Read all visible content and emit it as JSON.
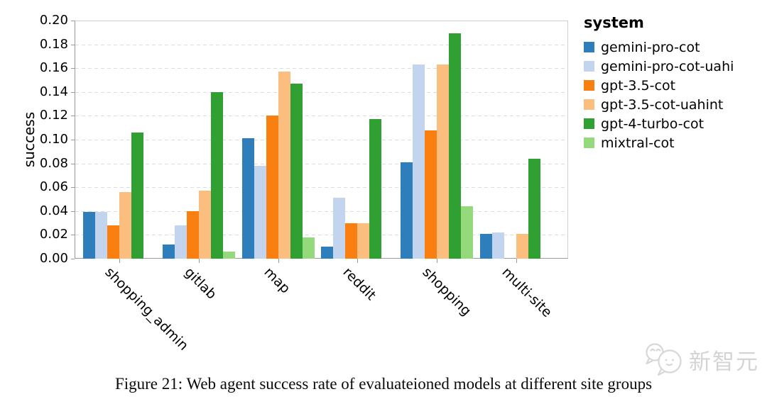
{
  "chart_data": {
    "type": "bar",
    "ylabel": "success",
    "legend_title": "system",
    "legend_position": "right",
    "grid": true,
    "ylim": [
      0,
      0.2
    ],
    "ytick_step": 0.02,
    "yticks": [
      "0.00",
      "0.02",
      "0.04",
      "0.06",
      "0.08",
      "0.10",
      "0.12",
      "0.14",
      "0.16",
      "0.18",
      "0.20"
    ],
    "categories": [
      "shopping_admin",
      "gitlab",
      "map",
      "reddit",
      "shopping",
      "multi-site"
    ],
    "series": [
      {
        "name": "gemini-pro-cot",
        "color": "#2e7ebc",
        "values": [
          0.039,
          0.012,
          0.101,
          0.01,
          0.081,
          0.021
        ]
      },
      {
        "name": "gemini-pro-cot-uahi",
        "color": "#c3d4ee",
        "values": [
          0.039,
          0.028,
          0.078,
          0.051,
          0.163,
          0.022
        ]
      },
      {
        "name": "gpt-3.5-cot",
        "color": "#f87f10",
        "values": [
          0.028,
          0.04,
          0.12,
          0.03,
          0.108,
          0
        ]
      },
      {
        "name": "gpt-3.5-cot-uahint",
        "color": "#fcbe7e",
        "values": [
          0.056,
          0.057,
          0.157,
          0.03,
          0.163,
          0.021
        ]
      },
      {
        "name": "gpt-4-turbo-cot",
        "color": "#31a033",
        "values": [
          0.106,
          0.14,
          0.147,
          0.117,
          0.189,
          0.084
        ]
      },
      {
        "name": "mixtral-cot",
        "color": "#95d97d",
        "values": [
          0,
          0.006,
          0.018,
          0,
          0.044,
          0
        ]
      }
    ]
  },
  "caption": "Figure 21: Web agent success rate of evaluateioned models at different site groups",
  "watermark": {
    "text": "新智元",
    "color": "#d4d4d4"
  }
}
